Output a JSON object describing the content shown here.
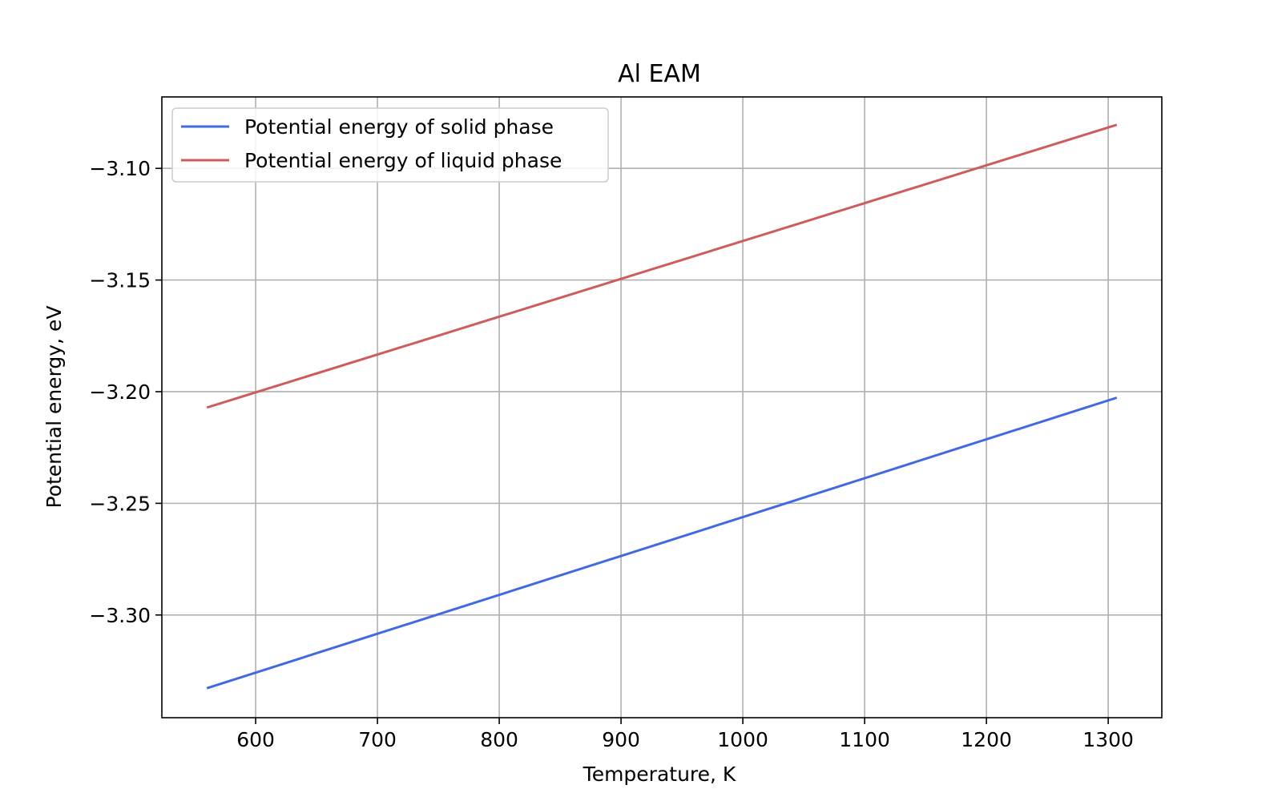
{
  "chart_data": {
    "type": "line",
    "title": "Al EAM",
    "xlabel": "Temperature, K",
    "ylabel": "Potential energy, eV",
    "xlim": [
      523,
      1344
    ],
    "ylim": [
      -3.346,
      -3.068
    ],
    "xticks": [
      600,
      700,
      800,
      900,
      1000,
      1100,
      1200,
      1300
    ],
    "xtick_labels": [
      "600",
      "700",
      "800",
      "900",
      "1000",
      "1100",
      "1200",
      "1300"
    ],
    "yticks": [
      -3.3,
      -3.25,
      -3.2,
      -3.15,
      -3.1
    ],
    "ytick_labels": [
      "−3.30",
      "−3.25",
      "−3.20",
      "−3.15",
      "−3.10"
    ],
    "grid": true,
    "legend_position": "top-left",
    "series": [
      {
        "name": "Potential energy of solid phase",
        "color": "#4169e1",
        "x": [
          560,
          1307
        ],
        "y": [
          -3.3328,
          -3.2027
        ]
      },
      {
        "name": "Potential energy of liquid phase",
        "color": "#cd5c5c",
        "x": [
          560,
          1307
        ],
        "y": [
          -3.2071,
          -3.0805
        ]
      }
    ]
  }
}
